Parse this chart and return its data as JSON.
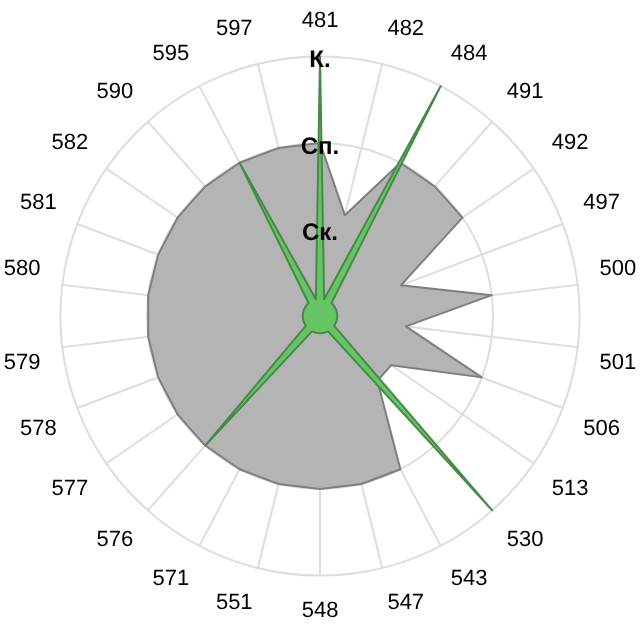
{
  "chart_data": {
    "type": "radar",
    "categories": [
      "481",
      "482",
      "484",
      "491",
      "492",
      "497",
      "500",
      "501",
      "506",
      "513",
      "530",
      "543",
      "547",
      "548",
      "551",
      "571",
      "576",
      "577",
      "578",
      "579",
      "580",
      "581",
      "582",
      "590",
      "595",
      "597"
    ],
    "ylim": [
      0,
      3
    ],
    "yticks": [
      {
        "value": 1,
        "label": "Ск."
      },
      {
        "value": 2,
        "label": "Сп."
      },
      {
        "value": 3,
        "label": "К."
      }
    ],
    "grid": true,
    "legend": false,
    "series": [
      {
        "color": "#b4b4b4",
        "values": [
          2,
          1.2,
          2,
          2,
          2,
          1,
          2,
          1,
          2,
          1,
          1,
          2,
          2,
          2,
          2,
          2,
          2,
          2,
          2,
          2,
          2,
          2,
          2,
          2,
          2,
          2
        ]
      },
      {
        "color": "#66c466",
        "values": [
          3,
          0.2,
          3,
          0.2,
          0.2,
          0.2,
          0.2,
          0.2,
          0.2,
          0.2,
          3,
          0.2,
          0.2,
          0.2,
          0.2,
          0.2,
          2,
          0.2,
          0.2,
          0.2,
          0.2,
          0.2,
          0.2,
          0.2,
          2,
          0.2
        ]
      }
    ]
  }
}
